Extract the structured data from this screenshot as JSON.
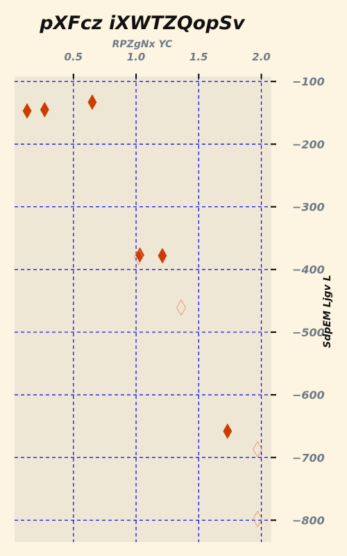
{
  "chart_data": {
    "type": "scatter",
    "title": "pXFcz  iXWTZQopSv",
    "xlabel": "RPZgNx YC",
    "ylabel": "SdpEM Ljgv  L",
    "xlim": [
      0.03,
      2.08
    ],
    "ylim": [
      -835,
      -92
    ],
    "x_axis_position": "top",
    "y_axis_position": "right",
    "xticks": [
      0.5,
      1.0,
      1.5,
      2.0
    ],
    "xtick_labels": [
      "0.5",
      "1.0",
      "1.5",
      "2.0"
    ],
    "yticks": [
      -100,
      -200,
      -300,
      -400,
      -500,
      -600,
      -700,
      -800
    ],
    "ytick_labels": [
      "−100",
      "−200",
      "−300",
      "−400",
      "−500",
      "−600",
      "−700",
      "−800"
    ],
    "grid": true,
    "series": [
      {
        "marker": "filled-diamond",
        "color": "#cc3d00",
        "points": [
          {
            "x": 0.13,
            "y": -147
          },
          {
            "x": 0.27,
            "y": -145
          },
          {
            "x": 0.65,
            "y": -133
          },
          {
            "x": 1.03,
            "y": -377
          },
          {
            "x": 1.21,
            "y": -378
          },
          {
            "x": 1.73,
            "y": -658
          }
        ]
      },
      {
        "marker": "hollow-diamond",
        "color": "#e8956b",
        "points": [
          {
            "x": 1.02,
            "y": -380
          },
          {
            "x": 1.36,
            "y": -461
          },
          {
            "x": 1.97,
            "y": -687
          },
          {
            "x": 1.97,
            "y": -798
          }
        ]
      }
    ],
    "colors": {
      "page_background": "#fdf5e2",
      "plot_background": "#efe7d6",
      "grid": "#0000ee",
      "tick_label": "#6e7b85",
      "title": "#111111"
    }
  }
}
